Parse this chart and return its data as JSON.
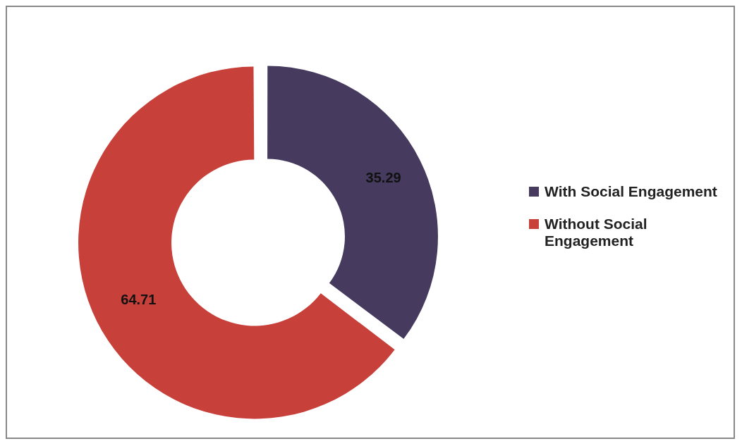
{
  "chart_data": {
    "type": "donut",
    "categories": [
      "With Social Engagement",
      "Without Social Engagement"
    ],
    "values": [
      35.29,
      64.71
    ],
    "colors": [
      "#463a5e",
      "#c8403a"
    ],
    "data_labels": true,
    "legend": "right"
  }
}
